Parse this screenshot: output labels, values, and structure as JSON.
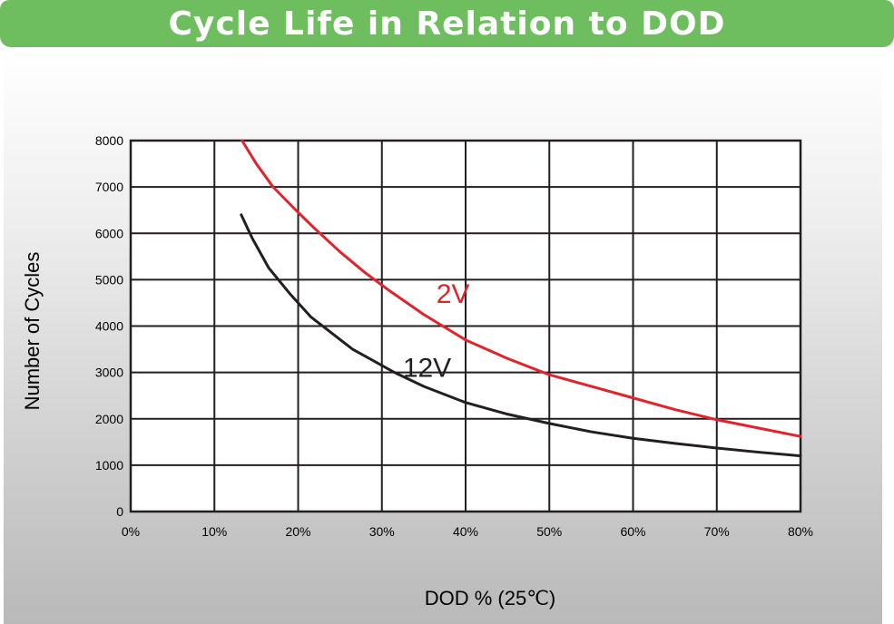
{
  "header": {
    "title": "Cycle Life in Relation to DOD"
  },
  "colors": {
    "header_bg": "#6ebd5f",
    "series_2v": "#e0242c",
    "series_12v": "#231f20"
  },
  "chart_data": {
    "type": "line",
    "title": "Cycle Life in Relation to DOD",
    "xlabel": "DOD % (25℃)",
    "ylabel": "Number of Cycles",
    "xlim": [
      0,
      80
    ],
    "ylim": [
      0,
      8000
    ],
    "x_ticks": [
      0,
      10,
      20,
      30,
      40,
      50,
      60,
      70,
      80
    ],
    "x_tick_labels": [
      "0%",
      "10%",
      "20%",
      "30%",
      "40%",
      "50%",
      "60%",
      "70%",
      "80%"
    ],
    "y_ticks": [
      0,
      1000,
      2000,
      3000,
      4000,
      5000,
      6000,
      7000,
      8000
    ],
    "y_tick_labels": [
      "0",
      "1000",
      "2000",
      "3000",
      "4000",
      "5000",
      "6000",
      "7000",
      "8000"
    ],
    "grid": true,
    "series": [
      {
        "name": "2V",
        "color": "#e0242c",
        "x": [
          13.3,
          15,
          17,
          20,
          22,
          25,
          28,
          31,
          35,
          40,
          45,
          50,
          55,
          60,
          65,
          70,
          75,
          80
        ],
        "y": [
          8000,
          7500,
          7000,
          6450,
          6100,
          5600,
          5150,
          4750,
          4250,
          3700,
          3300,
          2950,
          2700,
          2450,
          2200,
          1980,
          1800,
          1620
        ]
      },
      {
        "name": "12V",
        "color": "#231f20",
        "x": [
          13.2,
          14.5,
          16.5,
          19,
          21.5,
          24,
          26.5,
          29,
          31.5,
          35,
          40,
          45,
          50,
          55,
          60,
          65,
          70,
          75,
          80
        ],
        "y": [
          6400,
          5900,
          5250,
          4700,
          4200,
          3850,
          3500,
          3250,
          3000,
          2700,
          2350,
          2100,
          1900,
          1720,
          1580,
          1470,
          1370,
          1280,
          1200
        ]
      }
    ]
  }
}
